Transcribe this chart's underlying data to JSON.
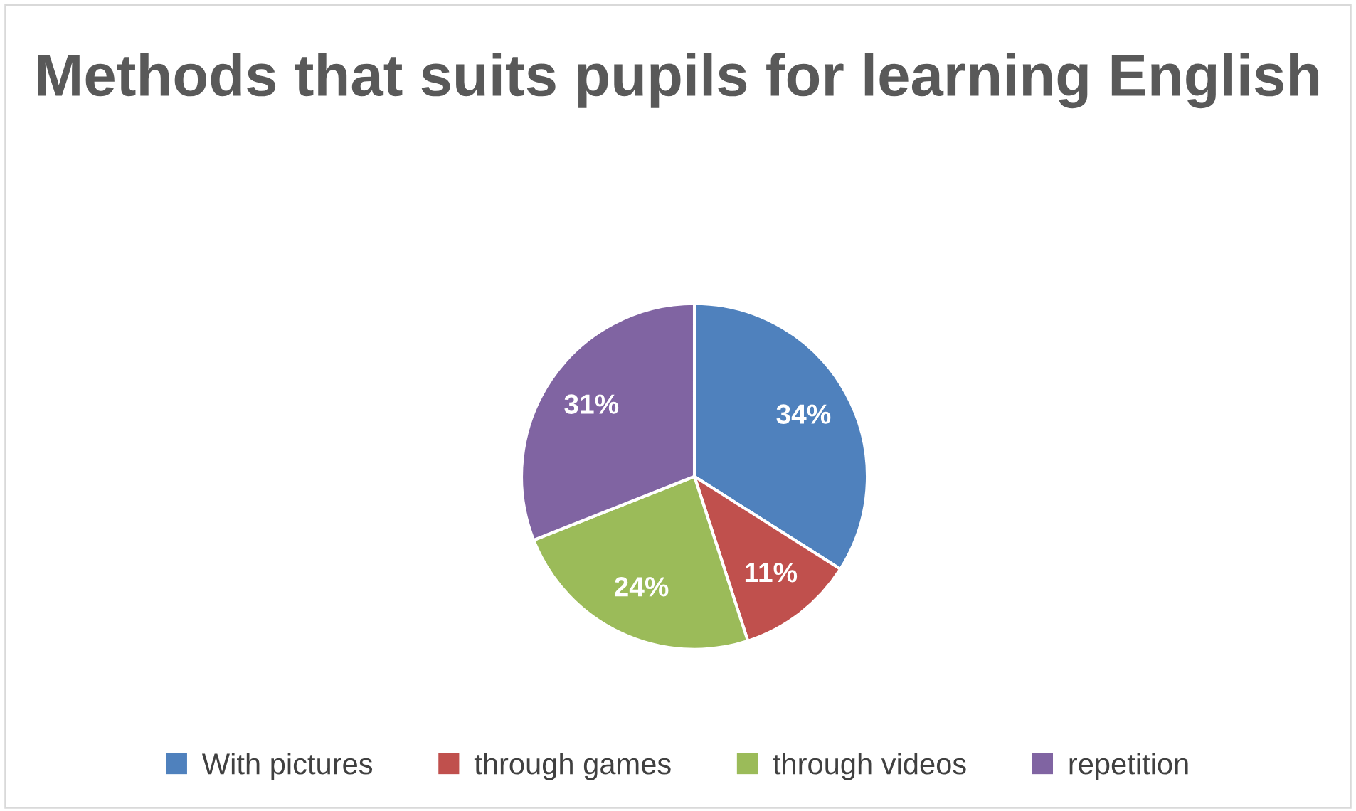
{
  "chart_data": {
    "type": "pie",
    "title": "Methods that suits pupils for learning English",
    "categories": [
      "With pictures",
      "through games",
      "through videos",
      "repetition"
    ],
    "values": [
      34,
      11,
      24,
      31
    ],
    "colors": [
      "#4f81bd",
      "#c0504d",
      "#9bbb59",
      "#8064a2"
    ],
    "value_labels": [
      "34%",
      "11%",
      "24%",
      "31%"
    ],
    "legend": "bottom"
  }
}
